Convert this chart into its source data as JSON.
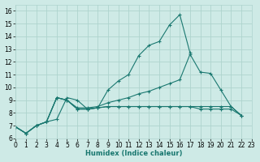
{
  "xlabel": "Humidex (Indice chaleur)",
  "bg_color": "#ceeae6",
  "grid_color": "#aed4ce",
  "line_color": "#1a7870",
  "series": [
    {
      "x": [
        0,
        1,
        2,
        3,
        4,
        5,
        6,
        7,
        8,
        9,
        10,
        11,
        12,
        13,
        14,
        15,
        16,
        17,
        18
      ],
      "y": [
        6.9,
        6.4,
        7.0,
        7.3,
        7.5,
        9.2,
        9.0,
        8.3,
        8.4,
        9.8,
        10.5,
        11.0,
        12.5,
        13.3,
        13.6,
        14.9,
        15.7,
        12.7,
        null
      ]
    },
    {
      "x": [
        0,
        1,
        2,
        3,
        4,
        5,
        6,
        7,
        8,
        9,
        10,
        11,
        12,
        13,
        14,
        15,
        16,
        17,
        18,
        19,
        20,
        21,
        22
      ],
      "y": [
        6.9,
        6.4,
        7.0,
        7.3,
        9.2,
        9.0,
        8.4,
        8.4,
        8.5,
        8.8,
        9.0,
        9.2,
        9.5,
        9.7,
        10.0,
        10.3,
        10.6,
        12.6,
        11.2,
        11.1,
        9.8,
        8.5,
        7.8
      ]
    },
    {
      "x": [
        0,
        1,
        2,
        3,
        4,
        5,
        6,
        7,
        8,
        9,
        10,
        11,
        12,
        13,
        14,
        15,
        16,
        17,
        18,
        19,
        20,
        21,
        22
      ],
      "y": [
        6.9,
        6.4,
        7.0,
        7.3,
        9.2,
        9.0,
        8.3,
        8.3,
        8.4,
        8.5,
        8.5,
        8.5,
        8.5,
        8.5,
        8.5,
        8.5,
        8.5,
        8.5,
        8.3,
        8.3,
        8.3,
        8.3,
        7.8
      ]
    },
    {
      "x": [
        0,
        1,
        2,
        3,
        4,
        5,
        6,
        7,
        8,
        9,
        10,
        11,
        12,
        13,
        14,
        15,
        16,
        17,
        18,
        19,
        20,
        21,
        22
      ],
      "y": [
        6.9,
        6.4,
        7.0,
        7.3,
        9.2,
        9.0,
        8.3,
        8.3,
        8.4,
        8.5,
        8.5,
        8.5,
        8.5,
        8.5,
        8.5,
        8.5,
        8.5,
        8.5,
        8.5,
        8.5,
        8.5,
        8.5,
        7.8
      ]
    }
  ],
  "xlim": [
    0,
    23
  ],
  "ylim": [
    6.0,
    16.5
  ],
  "yticks": [
    6,
    7,
    8,
    9,
    10,
    11,
    12,
    13,
    14,
    15,
    16
  ],
  "xticks": [
    0,
    1,
    2,
    3,
    4,
    5,
    6,
    7,
    8,
    9,
    10,
    11,
    12,
    13,
    14,
    15,
    16,
    17,
    18,
    19,
    20,
    21,
    22,
    23
  ]
}
